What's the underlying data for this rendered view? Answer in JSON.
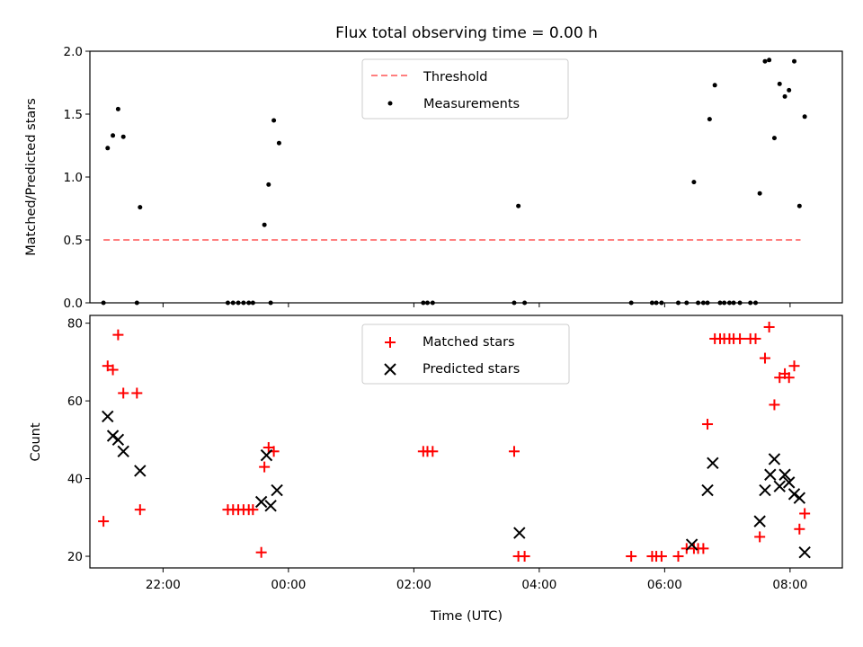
{
  "title": "Flux total observing time = 0.00 h",
  "chart_data": [
    {
      "type": "scatter",
      "ylabel": "Matched/Predicted stars",
      "xlim": [
        "20:50",
        "08:50"
      ],
      "ylim": [
        0,
        2.0
      ],
      "yticks": [
        "0.0",
        "0.5",
        "1.0",
        "1.5",
        "2.0"
      ],
      "legend_position": "top-center",
      "threshold": {
        "name": "Threshold",
        "color": "#ff7f7f",
        "style": "dashed",
        "value": 0.5,
        "x_range": [
          "21:03",
          "08:10"
        ]
      },
      "series": [
        {
          "name": "Measurements",
          "color": "#000000",
          "marker": "dot",
          "points": [
            [
              "21:03",
              0
            ],
            [
              "21:07",
              1.23
            ],
            [
              "21:12",
              1.33
            ],
            [
              "21:17",
              1.54
            ],
            [
              "21:22",
              1.32
            ],
            [
              "21:35",
              0
            ],
            [
              "21:38",
              0.76
            ],
            [
              "23:02",
              0
            ],
            [
              "23:07",
              0
            ],
            [
              "23:12",
              0
            ],
            [
              "23:17",
              0
            ],
            [
              "23:22",
              0
            ],
            [
              "23:26",
              0
            ],
            [
              "23:37",
              0.62
            ],
            [
              "23:41",
              0.94
            ],
            [
              "23:43",
              0
            ],
            [
              "23:46",
              1.45
            ],
            [
              "23:51",
              1.27
            ],
            [
              "02:09",
              0
            ],
            [
              "02:13",
              0
            ],
            [
              "02:18",
              0
            ],
            [
              "03:36",
              0
            ],
            [
              "03:40",
              0.77
            ],
            [
              "03:46",
              0
            ],
            [
              "05:28",
              0
            ],
            [
              "05:48",
              0
            ],
            [
              "05:52",
              0
            ],
            [
              "05:57",
              0
            ],
            [
              "06:13",
              0
            ],
            [
              "06:21",
              0
            ],
            [
              "06:28",
              0.96
            ],
            [
              "06:32",
              0
            ],
            [
              "06:37",
              0
            ],
            [
              "06:41",
              0
            ],
            [
              "06:43",
              1.46
            ],
            [
              "06:48",
              1.73
            ],
            [
              "06:53",
              0
            ],
            [
              "06:57",
              0
            ],
            [
              "07:02",
              0
            ],
            [
              "07:06",
              0
            ],
            [
              "07:12",
              0
            ],
            [
              "07:22",
              0
            ],
            [
              "07:27",
              0
            ],
            [
              "07:31",
              0.87
            ],
            [
              "07:36",
              1.92
            ],
            [
              "07:40",
              1.93
            ],
            [
              "07:45",
              1.31
            ],
            [
              "07:50",
              1.74
            ],
            [
              "07:55",
              1.64
            ],
            [
              "07:59",
              1.69
            ],
            [
              "08:04",
              1.92
            ],
            [
              "08:09",
              0.77
            ],
            [
              "08:14",
              1.48
            ]
          ]
        }
      ]
    },
    {
      "type": "scatter",
      "xlabel": "Time (UTC)",
      "ylabel": "Count",
      "xlim": [
        "20:50",
        "08:50"
      ],
      "ylim": [
        17,
        82
      ],
      "xticks": [
        "22:00",
        "00:00",
        "02:00",
        "04:00",
        "06:00",
        "08:00"
      ],
      "yticks": [
        "20",
        "40",
        "60",
        "80"
      ],
      "legend_position": "top-center",
      "series": [
        {
          "name": "Matched stars",
          "color": "#ff0000",
          "marker": "plus",
          "points": [
            [
              "21:03",
              29
            ],
            [
              "21:07",
              69
            ],
            [
              "21:12",
              68
            ],
            [
              "21:17",
              77
            ],
            [
              "21:22",
              62
            ],
            [
              "21:35",
              62
            ],
            [
              "21:38",
              32
            ],
            [
              "23:02",
              32
            ],
            [
              "23:07",
              32
            ],
            [
              "23:12",
              32
            ],
            [
              "23:17",
              32
            ],
            [
              "23:22",
              32
            ],
            [
              "23:26",
              32
            ],
            [
              "23:34",
              21
            ],
            [
              "23:37",
              43
            ],
            [
              "23:41",
              48
            ],
            [
              "23:46",
              47
            ],
            [
              "02:09",
              47
            ],
            [
              "02:13",
              47
            ],
            [
              "02:18",
              47
            ],
            [
              "03:36",
              47
            ],
            [
              "03:40",
              20
            ],
            [
              "03:46",
              20
            ],
            [
              "05:28",
              20
            ],
            [
              "05:48",
              20
            ],
            [
              "05:52",
              20
            ],
            [
              "05:57",
              20
            ],
            [
              "06:13",
              20
            ],
            [
              "06:21",
              22
            ],
            [
              "06:28",
              22
            ],
            [
              "06:32",
              22
            ],
            [
              "06:37",
              22
            ],
            [
              "06:41",
              54
            ],
            [
              "06:48",
              76
            ],
            [
              "06:53",
              76
            ],
            [
              "06:57",
              76
            ],
            [
              "07:02",
              76
            ],
            [
              "07:06",
              76
            ],
            [
              "07:12",
              76
            ],
            [
              "07:22",
              76
            ],
            [
              "07:27",
              76
            ],
            [
              "07:31",
              25
            ],
            [
              "07:36",
              71
            ],
            [
              "07:40",
              79
            ],
            [
              "07:45",
              59
            ],
            [
              "07:50",
              66
            ],
            [
              "07:55",
              67
            ],
            [
              "07:59",
              66
            ],
            [
              "08:04",
              69
            ],
            [
              "08:09",
              27
            ],
            [
              "08:14",
              31
            ]
          ]
        },
        {
          "name": "Predicted stars",
          "color": "#000000",
          "marker": "x",
          "points": [
            [
              "21:07",
              56
            ],
            [
              "21:12",
              51
            ],
            [
              "21:17",
              50
            ],
            [
              "21:22",
              47
            ],
            [
              "21:38",
              42
            ],
            [
              "23:34",
              34
            ],
            [
              "23:39",
              46
            ],
            [
              "23:43",
              33
            ],
            [
              "23:49",
              37
            ],
            [
              "03:41",
              26
            ],
            [
              "06:26",
              23
            ],
            [
              "06:41",
              37
            ],
            [
              "06:46",
              44
            ],
            [
              "07:31",
              29
            ],
            [
              "07:36",
              37
            ],
            [
              "07:41",
              41
            ],
            [
              "07:45",
              45
            ],
            [
              "07:50",
              38
            ],
            [
              "07:55",
              41
            ],
            [
              "07:59",
              39
            ],
            [
              "08:04",
              36
            ],
            [
              "08:09",
              35
            ],
            [
              "08:14",
              21
            ]
          ]
        }
      ]
    }
  ]
}
